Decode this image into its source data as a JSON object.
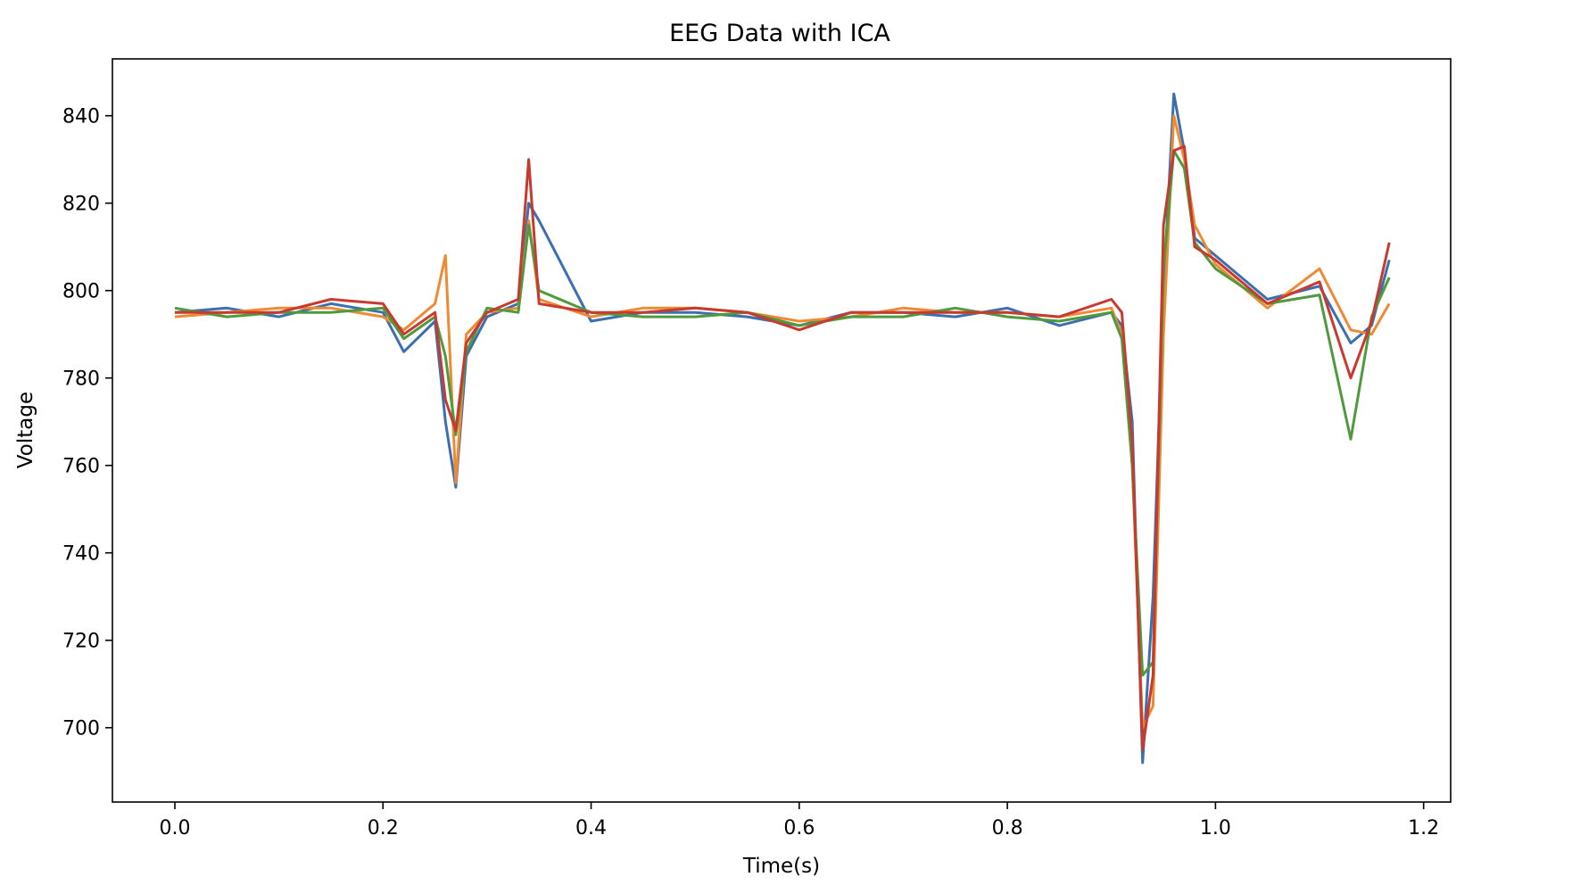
{
  "chart_data": {
    "type": "line",
    "title": "EEG Data with ICA",
    "xlabel": "Time(s)",
    "ylabel": "Voltage",
    "xlim": [
      -0.06,
      1.226
    ],
    "ylim": [
      683,
      853
    ],
    "x_ticks": [
      0.0,
      0.2,
      0.4,
      0.6,
      0.8,
      1.0,
      1.2
    ],
    "x_tick_labels": [
      "0.0",
      "0.2",
      "0.4",
      "0.6",
      "0.8",
      "1.0",
      "1.2"
    ],
    "y_ticks": [
      700,
      720,
      740,
      760,
      780,
      800,
      820,
      840
    ],
    "y_tick_labels": [
      "700",
      "720",
      "740",
      "760",
      "780",
      "800",
      "820",
      "840"
    ],
    "grid": false,
    "legend": "none",
    "x": [
      0.0,
      0.05,
      0.1,
      0.15,
      0.2,
      0.22,
      0.25,
      0.26,
      0.27,
      0.28,
      0.3,
      0.33,
      0.34,
      0.35,
      0.4,
      0.45,
      0.5,
      0.55,
      0.6,
      0.65,
      0.7,
      0.75,
      0.8,
      0.85,
      0.9,
      0.91,
      0.92,
      0.93,
      0.94,
      0.95,
      0.96,
      0.97,
      0.98,
      1.0,
      1.05,
      1.1,
      1.13,
      1.15,
      1.167
    ],
    "series": [
      {
        "color": "#3b6fb0",
        "values": [
          795,
          796,
          794,
          797,
          795,
          786,
          793,
          770,
          755,
          785,
          794,
          797,
          820,
          816,
          793,
          795,
          795,
          794,
          792,
          795,
          795,
          794,
          796,
          792,
          795,
          792,
          770,
          692,
          730,
          800,
          845,
          832,
          812,
          808,
          798,
          801,
          788,
          792,
          807
        ]
      },
      {
        "color": "#ef8a33",
        "values": [
          794,
          795,
          796,
          796,
          794,
          791,
          797,
          808,
          756,
          790,
          795,
          796,
          816,
          798,
          794,
          796,
          796,
          795,
          793,
          794,
          796,
          795,
          795,
          794,
          796,
          790,
          760,
          700,
          705,
          790,
          840,
          830,
          815,
          806,
          796,
          805,
          791,
          790,
          797
        ]
      },
      {
        "color": "#4f9a3d",
        "values": [
          796,
          794,
          795,
          795,
          796,
          789,
          794,
          785,
          767,
          786,
          796,
          795,
          815,
          800,
          795,
          794,
          794,
          795,
          792,
          794,
          794,
          796,
          794,
          793,
          795,
          789,
          760,
          712,
          715,
          805,
          832,
          828,
          811,
          805,
          797,
          799,
          766,
          794,
          803
        ]
      },
      {
        "color": "#c83a2f",
        "values": [
          795,
          795,
          795,
          798,
          797,
          790,
          795,
          775,
          768,
          788,
          795,
          798,
          830,
          797,
          795,
          795,
          796,
          795,
          791,
          795,
          795,
          795,
          795,
          794,
          798,
          795,
          765,
          695,
          712,
          815,
          832,
          833,
          810,
          807,
          797,
          802,
          780,
          793,
          811
        ]
      }
    ]
  }
}
